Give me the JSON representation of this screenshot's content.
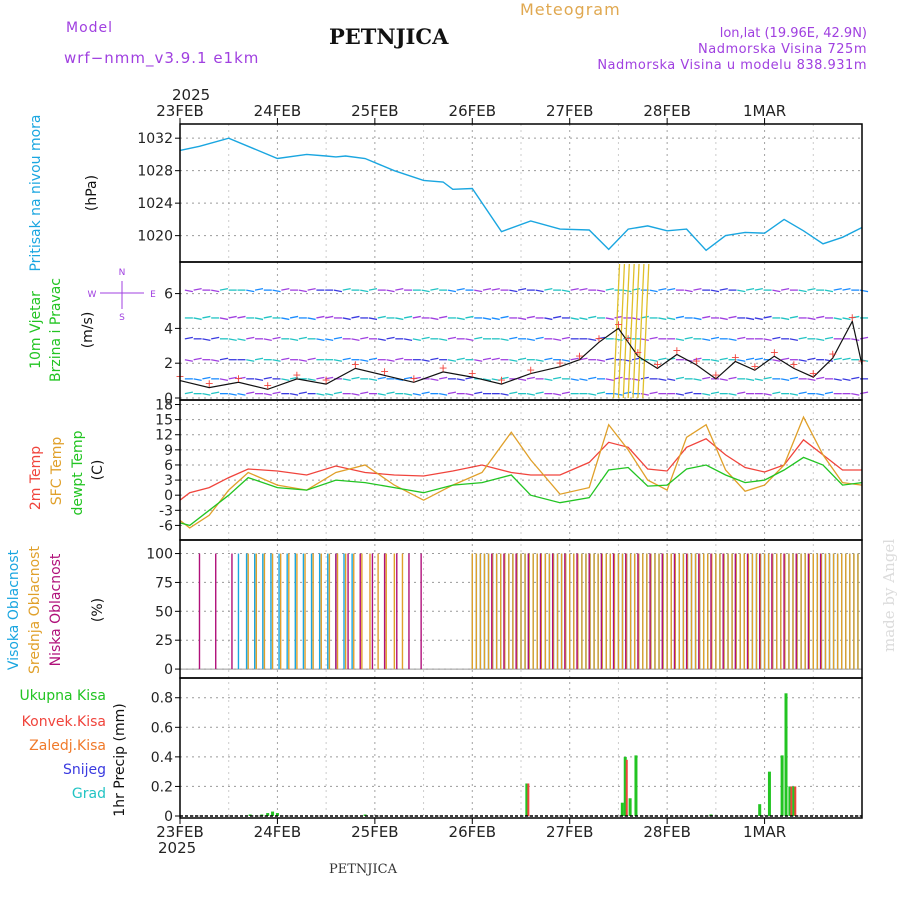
{
  "header": {
    "model_label": "Model",
    "model_name": "wrf−nmm_v3.9.1  e1km",
    "station": "PETNJICA",
    "product": "Meteogram",
    "lonlat": "lon,lat (19.96E, 42.9N)",
    "elevation": "Nadmorska Visina 725m",
    "model_elevation": "Nadmorska Visina u modelu 838.931m"
  },
  "footer": {
    "station": "PETNJICA",
    "watermark": "made by Angel"
  },
  "colors": {
    "pressure": "#1aa6e0",
    "temp2m": "#f0443c",
    "sfc": "#e0a02a",
    "dewpt": "#22c422",
    "high": "#1aa6e0",
    "mid": "#e0a02a",
    "low": "#b0107a",
    "total": "#22c422",
    "conv": "#f0443c",
    "frozen": "#f07a2a",
    "snow": "#3a3ae0",
    "graupel": "#22c4c4",
    "purple": "#a040e0",
    "text": "#333333"
  },
  "time_axis": {
    "year": "2025",
    "ticks": [
      "23FEB",
      "24FEB",
      "25FEB",
      "26FEB",
      "27FEB",
      "28FEB",
      "1MAR"
    ]
  },
  "chart_data": [
    {
      "type": "line",
      "name": "pressure",
      "ylabel_lines": [
        "Pritisak na nivou mora",
        "(hPa)"
      ],
      "yticks": [
        1020,
        1024,
        1028,
        1032
      ],
      "ylim": [
        1017,
        1033.5
      ],
      "x_days": [
        0,
        0.2,
        0.5,
        0.8,
        1.0,
        1.3,
        1.5,
        1.6,
        1.7,
        1.9,
        2.2,
        2.5,
        2.7,
        2.8,
        3.0,
        3.3,
        3.6,
        3.9,
        4.2,
        4.4,
        4.6,
        4.8,
        5.0,
        5.2,
        5.4,
        5.6,
        5.8,
        6.0,
        6.2,
        6.4,
        6.6,
        6.8,
        7.0
      ],
      "values": [
        1030.5,
        1031.0,
        1032.0,
        1030.5,
        1029.5,
        1030.0,
        1029.8,
        1029.7,
        1029.8,
        1029.5,
        1028.0,
        1026.8,
        1026.6,
        1025.7,
        1025.8,
        1020.5,
        1021.8,
        1020.8,
        1020.7,
        1018.3,
        1020.8,
        1021.2,
        1020.6,
        1020.8,
        1018.2,
        1020.0,
        1020.4,
        1020.3,
        1022.0,
        1020.6,
        1019.0,
        1019.8,
        1021.0
      ]
    },
    {
      "type": "line",
      "name": "wind10m",
      "ylabel_lines": [
        "10m Vjetar",
        "Brzina i Pravac",
        "(m/s)"
      ],
      "compass": {
        "n": "N",
        "e": "E",
        "w": "W",
        "s": "S"
      },
      "yticks": [
        0,
        2,
        4,
        6
      ],
      "ylim": [
        0,
        7.7
      ],
      "x_days": [
        0,
        0.3,
        0.6,
        0.9,
        1.2,
        1.5,
        1.8,
        2.1,
        2.4,
        2.7,
        3.0,
        3.3,
        3.6,
        3.9,
        4.1,
        4.3,
        4.5,
        4.6,
        4.7,
        4.9,
        5.1,
        5.3,
        5.5,
        5.7,
        5.9,
        6.1,
        6.3,
        6.5,
        6.7,
        6.9,
        7.0
      ],
      "values": [
        1.0,
        0.6,
        0.9,
        0.5,
        1.1,
        0.8,
        1.7,
        1.3,
        0.9,
        1.5,
        1.2,
        0.8,
        1.4,
        1.8,
        2.2,
        3.2,
        4.0,
        3.2,
        2.4,
        1.7,
        2.5,
        1.9,
        1.1,
        2.1,
        1.6,
        2.4,
        1.7,
        1.2,
        2.3,
        4.4,
        1.9
      ]
    },
    {
      "type": "line",
      "name": "temperature",
      "ylabel_lines": [
        "2m Temp",
        "SFC Temp",
        "dewpt Temp",
        "(C)"
      ],
      "yticks": [
        -6,
        -3,
        0,
        3,
        6,
        9,
        12,
        15,
        18
      ],
      "ylim": [
        -8.5,
        18.5
      ],
      "x_days": [
        0,
        0.1,
        0.3,
        0.5,
        0.7,
        1.0,
        1.3,
        1.6,
        1.9,
        2.2,
        2.5,
        2.8,
        3.1,
        3.4,
        3.6,
        3.9,
        4.2,
        4.4,
        4.6,
        4.8,
        5.0,
        5.2,
        5.4,
        5.6,
        5.8,
        6.0,
        6.2,
        6.4,
        6.6,
        6.8,
        7.0
      ],
      "series": [
        {
          "key": "temp2m",
          "values": [
            -1,
            0.5,
            1.5,
            3.5,
            5.2,
            4.8,
            4.0,
            5.8,
            4.5,
            4.0,
            3.8,
            4.8,
            6.0,
            4.5,
            4.0,
            4.0,
            6.5,
            10.5,
            9.5,
            5.2,
            4.8,
            9.5,
            11.2,
            8.0,
            5.5,
            4.6,
            6.0,
            11.0,
            8.0,
            5.0,
            5.0
          ]
        },
        {
          "key": "sfc",
          "values": [
            -5,
            -6.5,
            -4,
            1,
            4.5,
            2.0,
            1.0,
            4.5,
            6.0,
            2.0,
            -1.0,
            2.0,
            4.5,
            12.5,
            7.0,
            0.2,
            1.5,
            14.0,
            9.0,
            3.0,
            1.0,
            11.5,
            14.0,
            5.0,
            0.8,
            2.0,
            6.0,
            15.5,
            8.0,
            2.5,
            2.0
          ]
        },
        {
          "key": "dewpt",
          "values": [
            -5.5,
            -6.0,
            -3,
            0,
            3.5,
            1.5,
            1.0,
            3.0,
            2.5,
            1.5,
            0.5,
            2.0,
            2.5,
            4.0,
            0.0,
            -1.5,
            -0.5,
            5.0,
            5.5,
            1.8,
            2.0,
            5.2,
            6.0,
            4.0,
            2.5,
            3.0,
            5.0,
            7.5,
            6.0,
            2.0,
            2.5
          ]
        }
      ]
    },
    {
      "type": "bar",
      "name": "cloud_cover",
      "ylabel_lines": [
        "Visoka Oblacnost",
        "Srednja Oblacnost",
        "Niska Oblacnost",
        "(%)"
      ],
      "yticks": [
        0,
        25,
        50,
        75,
        100
      ],
      "ylim": [
        -6,
        110
      ],
      "segments": [
        {
          "key": "low",
          "from_day": 0.2,
          "to_day": 0.6,
          "step_h": 4,
          "value": 100
        },
        {
          "key": "high",
          "from_day": 0.6,
          "to_day": 1.8,
          "step_h": 2,
          "value": 100
        },
        {
          "key": "mid",
          "from_day": 0.7,
          "to_day": 2.3,
          "step_h": 2,
          "value": 100
        },
        {
          "key": "low",
          "from_day": 1.6,
          "to_day": 2.5,
          "step_h": 3,
          "value": 100
        },
        {
          "key": "high",
          "from_day": 3.0,
          "to_day": 7.0,
          "step_h": 1,
          "value": 100
        },
        {
          "key": "mid",
          "from_day": 3.0,
          "to_day": 7.0,
          "step_h": 1,
          "value": 100
        },
        {
          "key": "low",
          "from_day": 3.2,
          "to_day": 6.6,
          "step_h": 3,
          "value": 100
        }
      ]
    },
    {
      "type": "bar",
      "name": "precipitation",
      "ylabel_lines": [
        "Ukupna Kisa",
        "Konvek.Kisa",
        "Zaledj.Kisa",
        "Snijeg",
        "Grad",
        "1hr Precip (mm)"
      ],
      "yticks": [
        0,
        0.2,
        0.4,
        0.6,
        0.8
      ],
      "ylim": [
        0,
        0.92
      ],
      "x_days": [
        0.72,
        0.84,
        0.9,
        0.95,
        1.0,
        1.9,
        3.56,
        4.54,
        4.57,
        4.62,
        4.68,
        5.45,
        5.95,
        6.05,
        6.18,
        6.22,
        6.26,
        6.3
      ],
      "values": [
        0.01,
        0.01,
        0.02,
        0.03,
        0.02,
        0.01,
        0.22,
        0.09,
        0.4,
        0.12,
        0.41,
        0.01,
        0.08,
        0.3,
        0.41,
        0.83,
        0.2,
        0.2
      ],
      "conv_values": [
        0,
        0,
        0,
        0,
        0,
        0,
        0.22,
        0,
        0.38,
        0,
        0,
        0,
        0,
        0,
        0,
        0,
        0.2,
        0.2
      ]
    }
  ]
}
